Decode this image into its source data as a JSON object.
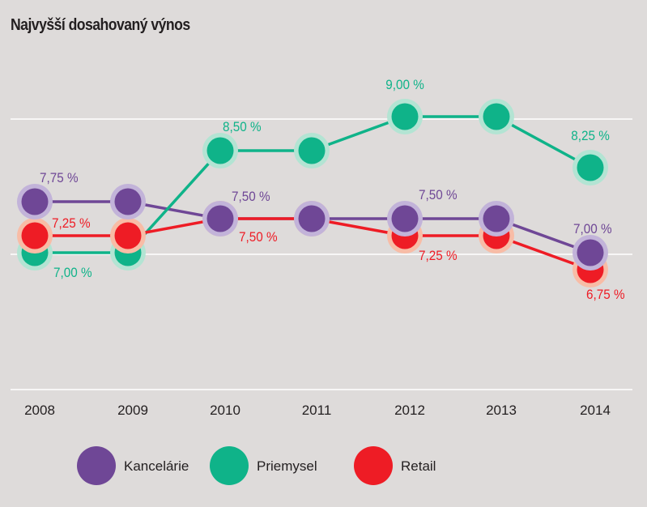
{
  "chart_data": {
    "type": "line",
    "title": "Najvyšší dosahovaný výnos",
    "xlabel": "",
    "ylabel": "",
    "categories": [
      "2008",
      "2009",
      "2010",
      "2011",
      "2012",
      "2013",
      "2014"
    ],
    "ylim": [
      5.0,
      9.0
    ],
    "gridlines": [
      5.0,
      7.0,
      9.0
    ],
    "grid": true,
    "legend_position": "bottom",
    "series": [
      {
        "name": "Kancelárie",
        "color": "#6f4796",
        "halo_color": "#c2b3d9",
        "values": [
          7.75,
          7.75,
          7.5,
          7.5,
          7.5,
          7.5,
          7.0
        ],
        "labels": [
          {
            "index": 0,
            "text": "7,75 %",
            "pos": "above-right"
          },
          {
            "index": 2,
            "text": "7,50 %",
            "pos": "above-right"
          },
          {
            "index": 4,
            "text": "7,50 %",
            "pos": "above-right"
          },
          {
            "index": 6,
            "text": "7,00 %",
            "pos": "above-right"
          }
        ]
      },
      {
        "name": "Priemysel",
        "color": "#0fb389",
        "halo_color": "#b3e4d3",
        "values": [
          7.0,
          7.0,
          8.5,
          8.5,
          9.0,
          9.0,
          8.25
        ],
        "labels": [
          {
            "index": 0,
            "text": "7,00 %",
            "pos": "below-right"
          },
          {
            "index": 2,
            "text": "8,50 %",
            "pos": "above-right"
          },
          {
            "index": 4,
            "text": "9,00 %",
            "pos": "above"
          },
          {
            "index": 6,
            "text": "8,25 %",
            "pos": "above"
          }
        ]
      },
      {
        "name": "Retail",
        "color": "#ee1c25",
        "halo_color": "#f8bca6",
        "values": [
          7.25,
          7.25,
          7.5,
          7.5,
          7.25,
          7.25,
          6.75
        ],
        "labels": [
          {
            "index": 0,
            "text": "7,25 %",
            "pos": "above-right"
          },
          {
            "index": 2,
            "text": "7,50 %",
            "pos": "below-right"
          },
          {
            "index": 4,
            "text": "7,25 %",
            "pos": "below-right"
          },
          {
            "index": 6,
            "text": "6,75 %",
            "pos": "below-right"
          }
        ]
      }
    ]
  }
}
